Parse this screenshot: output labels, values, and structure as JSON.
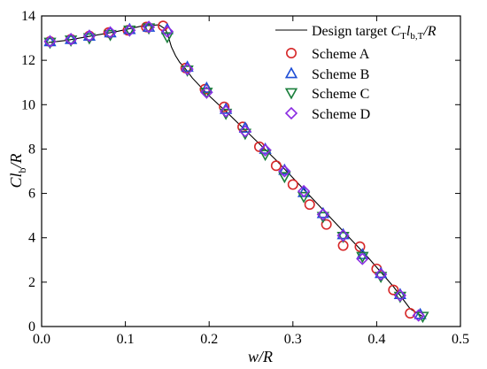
{
  "chart_data": {
    "type": "scatter",
    "xlim": [
      0,
      0.5
    ],
    "ylim": [
      0,
      14
    ],
    "xticks": [
      "0.0",
      "0.1",
      "0.2",
      "0.3",
      "0.4",
      "0.5"
    ],
    "yticks": [
      "0",
      "2",
      "4",
      "6",
      "8",
      "10",
      "12",
      "14"
    ],
    "xticks_values": [
      0,
      0.1,
      0.2,
      0.3,
      0.4,
      0.5
    ],
    "yticks_values": [
      0,
      2,
      4,
      6,
      8,
      10,
      12,
      14
    ],
    "xlabel": "w/R",
    "ylabel": {
      "main": "Cl",
      "sub": "b",
      "suffix": "/R"
    },
    "grid": false,
    "legend_position": "top-right",
    "legend": {
      "line": {
        "prefix": "Design target ",
        "c": "C",
        "c_sub": "T",
        "l": "l",
        "l_sub": "b,T",
        "suffix": "/R"
      },
      "markers": [
        "Scheme A",
        "Scheme B",
        "Scheme C",
        "Scheme D"
      ]
    },
    "series": [
      {
        "name": "Design target",
        "kind": "line",
        "color": "#000000",
        "x": [
          0.008,
          0.03,
          0.06,
          0.09,
          0.12,
          0.14,
          0.148,
          0.151,
          0.155,
          0.16,
          0.165,
          0.17,
          0.18,
          0.2,
          0.22,
          0.25,
          0.28,
          0.3,
          0.33,
          0.36,
          0.39,
          0.42,
          0.44,
          0.455
        ],
        "y": [
          12.8,
          12.9,
          13.1,
          13.3,
          13.55,
          13.6,
          13.4,
          13.1,
          12.6,
          12.2,
          11.9,
          11.7,
          11.2,
          10.4,
          9.7,
          8.6,
          7.5,
          6.7,
          5.5,
          4.3,
          3.1,
          1.8,
          0.8,
          0.45
        ]
      },
      {
        "name": "Scheme A",
        "kind": "marker",
        "marker": "circle",
        "color": "#d62728",
        "x": [
          0.01,
          0.035,
          0.057,
          0.08,
          0.103,
          0.125,
          0.145,
          0.172,
          0.195,
          0.218,
          0.24,
          0.26,
          0.28,
          0.3,
          0.32,
          0.34,
          0.36,
          0.38,
          0.4,
          0.42,
          0.44
        ],
        "y": [
          12.85,
          12.95,
          13.1,
          13.25,
          13.35,
          13.5,
          13.55,
          11.65,
          10.7,
          9.9,
          9.0,
          8.1,
          7.25,
          6.4,
          5.5,
          4.6,
          3.65,
          3.6,
          2.6,
          1.65,
          0.6
        ]
      },
      {
        "name": "Scheme B",
        "kind": "marker",
        "marker": "triangle-up",
        "color": "#1f4fd6",
        "x": [
          0.01,
          0.035,
          0.057,
          0.082,
          0.105,
          0.128,
          0.15,
          0.174,
          0.197,
          0.22,
          0.243,
          0.267,
          0.29,
          0.313,
          0.336,
          0.36,
          0.383,
          0.405,
          0.428,
          0.452
        ],
        "y": [
          12.85,
          12.95,
          13.1,
          13.25,
          13.4,
          13.5,
          13.4,
          11.7,
          10.75,
          9.8,
          8.95,
          8.0,
          7.05,
          6.05,
          5.1,
          4.15,
          3.25,
          2.4,
          1.45,
          0.55
        ]
      },
      {
        "name": "Scheme C",
        "kind": "marker",
        "marker": "triangle-down",
        "color": "#1b7f3c",
        "x": [
          0.01,
          0.035,
          0.057,
          0.082,
          0.105,
          0.128,
          0.15,
          0.174,
          0.197,
          0.22,
          0.243,
          0.267,
          0.29,
          0.313,
          0.336,
          0.36,
          0.383,
          0.405,
          0.428,
          0.455
        ],
        "y": [
          12.8,
          12.9,
          13.0,
          13.15,
          13.35,
          13.45,
          13.05,
          11.55,
          10.55,
          9.6,
          8.7,
          7.75,
          6.75,
          5.85,
          4.95,
          4.05,
          3.15,
          2.25,
          1.35,
          0.45
        ]
      },
      {
        "name": "Scheme D",
        "kind": "marker",
        "marker": "diamond",
        "color": "#8a2be2",
        "x": [
          0.01,
          0.035,
          0.057,
          0.082,
          0.105,
          0.128,
          0.15,
          0.174,
          0.197,
          0.22,
          0.243,
          0.267,
          0.29,
          0.313,
          0.336,
          0.36,
          0.383,
          0.405,
          0.428,
          0.45
        ],
        "y": [
          12.85,
          12.95,
          13.1,
          13.25,
          13.35,
          13.5,
          13.3,
          11.6,
          10.55,
          9.7,
          8.8,
          7.95,
          7.0,
          6.1,
          5.05,
          4.1,
          3.05,
          2.35,
          1.4,
          0.5
        ]
      }
    ]
  }
}
